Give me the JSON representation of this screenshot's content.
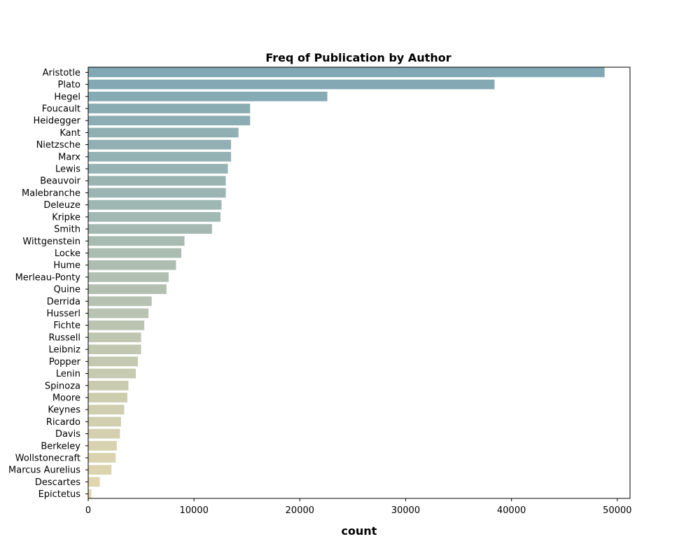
{
  "chart_data": {
    "type": "bar",
    "orientation": "horizontal",
    "title": "Freq of Publication by Author",
    "xlabel": "count",
    "ylabel": "",
    "xlim": [
      0,
      51200
    ],
    "xticks": [
      0,
      10000,
      20000,
      30000,
      40000,
      50000
    ],
    "xtick_labels": [
      "0",
      "10000",
      "20000",
      "30000",
      "40000",
      "50000"
    ],
    "grid": false,
    "categories": [
      "Aristotle",
      "Plato",
      "Hegel",
      "Foucault",
      "Heidegger",
      "Kant",
      "Nietzsche",
      "Marx",
      "Lewis",
      "Beauvoir",
      "Malebranche",
      "Deleuze",
      "Kripke",
      "Smith",
      "Wittgenstein",
      "Locke",
      "Hume",
      "Merleau-Ponty",
      "Quine",
      "Derrida",
      "Husserl",
      "Fichte",
      "Russell",
      "Leibniz",
      "Popper",
      "Lenin",
      "Spinoza",
      "Moore",
      "Keynes",
      "Ricardo",
      "Davis",
      "Berkeley",
      "Wollstonecraft",
      "Marcus Aurelius",
      "Descartes",
      "Epictetus"
    ],
    "values": [
      48800,
      38400,
      22600,
      15300,
      15300,
      14200,
      13500,
      13500,
      13200,
      13000,
      13000,
      12600,
      12500,
      11700,
      9100,
      8800,
      8300,
      7600,
      7400,
      6000,
      5700,
      5300,
      5000,
      5000,
      4700,
      4500,
      3800,
      3700,
      3400,
      3100,
      3000,
      2700,
      2600,
      2200,
      1100,
      300
    ],
    "colors": {
      "start": "#81a8b4",
      "end": "#e2d7ae"
    }
  }
}
